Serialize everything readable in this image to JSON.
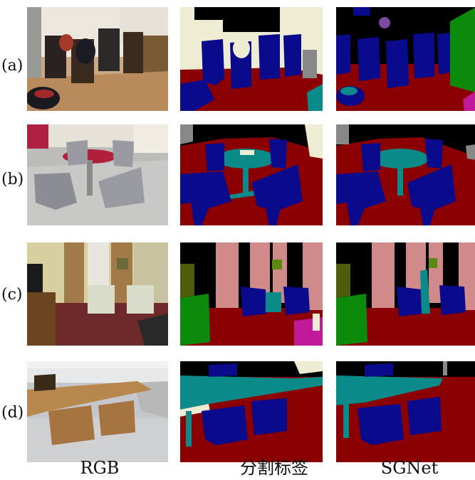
{
  "figure": {
    "row_labels": [
      "(a)",
      "(b)",
      "(c)",
      "(d)"
    ],
    "column_labels": [
      "RGB",
      "分割标签",
      "SGNet"
    ]
  },
  "colors": {
    "floor": "#8b0000",
    "chair": "#0a0a8c",
    "table": "#0b8a8a",
    "wall": "#eeecd2",
    "void": "#000000",
    "curtain": "#d08a8a",
    "cabinet": "#4f5c0b",
    "sofa": "#0c8a0c",
    "object": "#c0199a",
    "picture": "#5a8a10"
  }
}
